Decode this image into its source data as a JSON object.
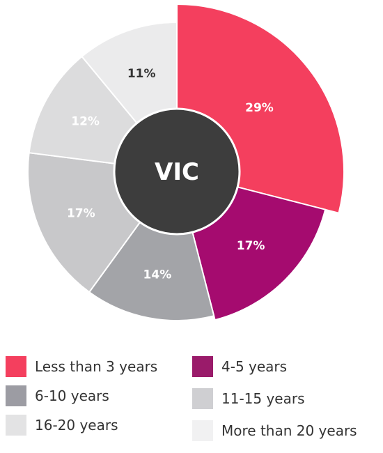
{
  "chart_data": {
    "type": "pie",
    "center_label": "VIC",
    "slices": [
      {
        "label": "Less than 3 years",
        "value": 29,
        "display": "29%",
        "color": "#f43f5e",
        "label_color": "#ffffff"
      },
      {
        "label": "4-5 years",
        "value": 17,
        "display": "17%",
        "color": "#a50b6f",
        "label_color": "#ffffff"
      },
      {
        "label": "6-10 years",
        "value": 14,
        "display": "14%",
        "color": "#a3a4a8",
        "label_color": "#ffffff"
      },
      {
        "label": "11-15 years",
        "value": 17,
        "display": "17%",
        "color": "#c8c8ca",
        "label_color": "#ffffff"
      },
      {
        "label": "16-20 years",
        "value": 12,
        "display": "12%",
        "color": "#dcdcdd",
        "label_color": "#ffffff"
      },
      {
        "label": "More than 20 years",
        "value": 11,
        "display": "11%",
        "color": "#ebebec",
        "label_color": "#333333"
      }
    ],
    "legend": [
      {
        "label": "Less than 3 years",
        "color": "#f43f5e"
      },
      {
        "label": "4-5 years",
        "color": "#9a1b6a"
      },
      {
        "label": "6-10 years",
        "color": "#9c9ca3"
      },
      {
        "label": "11-15 years",
        "color": "#cfcfd2"
      },
      {
        "label": "16-20 years",
        "color": "#e3e3e4"
      },
      {
        "label": "More than 20 years",
        "color": "#f1f1f2"
      }
    ],
    "legend_placement": "bottom",
    "center_color": "#3d3d3d"
  }
}
